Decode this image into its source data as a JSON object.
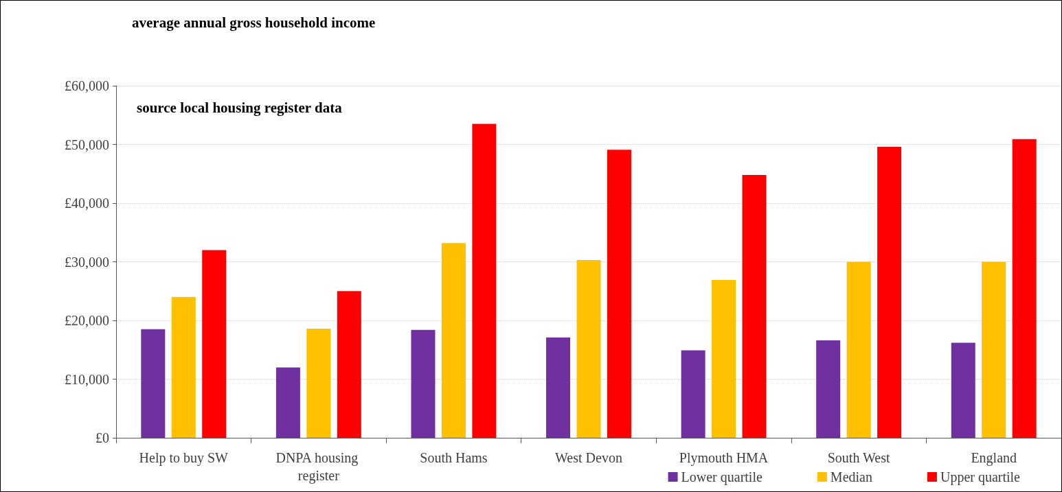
{
  "chart_data": {
    "type": "bar",
    "title": "average annual gross household income",
    "annotations": [
      "source local housing register data"
    ],
    "categories": [
      "Help to buy SW",
      "DNPA housing register",
      "South Hams",
      "West Devon",
      "Plymouth HMA",
      "South West",
      "England"
    ],
    "series": [
      {
        "name": "Lower quartile",
        "color": "#7030a0",
        "values": [
          18500,
          12000,
          18400,
          17100,
          14900,
          16600,
          16200
        ]
      },
      {
        "name": "Median",
        "color": "#ffc000",
        "values": [
          24000,
          18600,
          33200,
          30300,
          26900,
          30000,
          30000
        ]
      },
      {
        "name": "Upper quartile",
        "color": "#ff0000",
        "values": [
          32000,
          25000,
          53500,
          49100,
          44800,
          49600,
          50900
        ]
      }
    ],
    "ylim": [
      0,
      60000
    ],
    "yticks": [
      {
        "value": 0,
        "label": "£0"
      },
      {
        "value": 10000,
        "label": "£10,000"
      },
      {
        "value": 20000,
        "label": "£20,000"
      },
      {
        "value": 30000,
        "label": "£30,000"
      },
      {
        "value": 40000,
        "label": "£40,000"
      },
      {
        "value": 50000,
        "label": "£50,000"
      },
      {
        "value": 60000,
        "label": "£60,000"
      }
    ],
    "grid": "y",
    "legend": "bottom right"
  }
}
